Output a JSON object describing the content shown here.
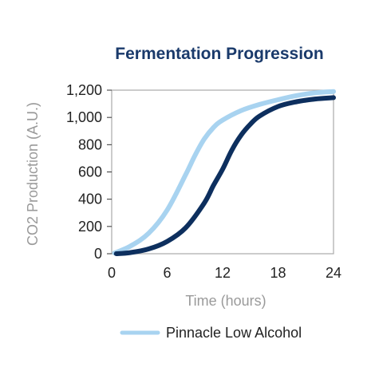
{
  "chart_data": {
    "type": "line",
    "title": "Fermentation Progression",
    "xlabel": "Time (hours)",
    "ylabel": "CO2 Production (A.U.)",
    "xlim": [
      0,
      24
    ],
    "ylim": [
      0,
      1200
    ],
    "x_ticks": [
      0,
      6,
      12,
      18,
      24
    ],
    "x_tick_labels": [
      "0",
      "6",
      "12",
      "18",
      "24"
    ],
    "y_ticks": [
      0,
      200,
      400,
      600,
      800,
      1000,
      1200
    ],
    "y_tick_labels": [
      "0",
      "200",
      "400",
      "600",
      "800",
      "1,000",
      "1,200"
    ],
    "grid": false,
    "legend_position": "bottom",
    "series": [
      {
        "name": "Pinnacle Low Alcohol",
        "color": "#a8d3f0",
        "x": [
          0.3,
          2,
          4,
          6,
          8,
          9,
          10,
          11,
          12,
          14,
          16,
          18,
          20,
          22,
          24
        ],
        "y": [
          5,
          55,
          150,
          320,
          580,
          720,
          840,
          925,
          980,
          1050,
          1095,
          1130,
          1160,
          1180,
          1190
        ]
      },
      {
        "color": "#0d2f5e",
        "x": [
          0.5,
          2,
          4,
          6,
          8,
          10,
          11,
          12,
          13,
          14,
          15,
          16,
          18,
          20,
          22,
          24
        ],
        "y": [
          0,
          8,
          35,
          90,
          190,
          370,
          500,
          620,
          760,
          870,
          950,
          1010,
          1080,
          1115,
          1135,
          1145
        ]
      }
    ]
  }
}
